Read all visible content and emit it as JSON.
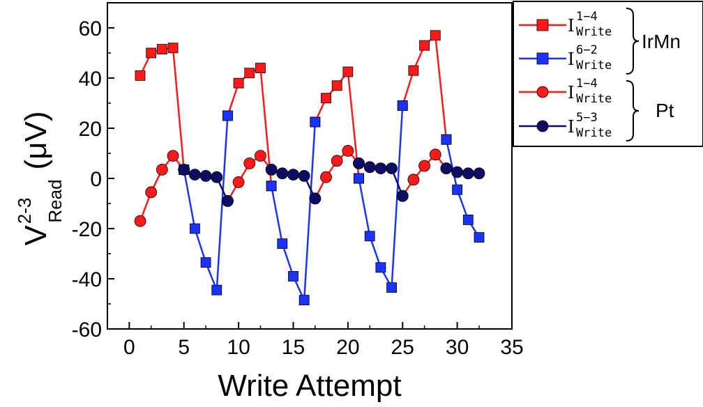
{
  "chart_data": {
    "type": "line",
    "xlabel": "Write Attempt",
    "ylabel": {
      "main": "V",
      "sup": "2-3",
      "sub": "Read",
      "unit": "(μV)"
    },
    "xlim": [
      -2,
      35
    ],
    "ylim": [
      -60,
      70
    ],
    "xticks": [
      0,
      5,
      10,
      15,
      20,
      25,
      30,
      35
    ],
    "yticks": [
      -60,
      -40,
      -20,
      0,
      20,
      40,
      60
    ],
    "series": [
      {
        "name": "I Write 1−4 (IrMn)",
        "color": "#ff1a1a",
        "marker": "square",
        "segments": [
          [
            [
              1,
              41
            ],
            [
              2,
              50
            ],
            [
              3,
              51.5
            ],
            [
              4,
              52
            ],
            [
              5,
              3.5
            ]
          ],
          [
            [
              9,
              25
            ],
            [
              10,
              38
            ],
            [
              11,
              42
            ],
            [
              12,
              44
            ],
            [
              13,
              -3
            ]
          ],
          [
            [
              17,
              22.5
            ],
            [
              18,
              32
            ],
            [
              19,
              37
            ],
            [
              20,
              42.5
            ],
            [
              21,
              0
            ]
          ],
          [
            [
              25,
              29
            ],
            [
              26,
              43
            ],
            [
              27,
              53
            ],
            [
              28,
              57
            ],
            [
              29,
              15.5
            ]
          ]
        ]
      },
      {
        "name": "I Write 6−2 (IrMn)",
        "color": "#1a33ff",
        "marker": "square",
        "segments": [
          [
            [
              5,
              3.5
            ],
            [
              6,
              -20
            ],
            [
              7,
              -33.5
            ],
            [
              8,
              -44.5
            ],
            [
              9,
              25
            ]
          ],
          [
            [
              13,
              -3
            ],
            [
              14,
              -26
            ],
            [
              15,
              -39
            ],
            [
              16,
              -48.5
            ],
            [
              17,
              22.5
            ]
          ],
          [
            [
              21,
              0
            ],
            [
              22,
              -23
            ],
            [
              23,
              -35.5
            ],
            [
              24,
              -43.5
            ],
            [
              25,
              29
            ]
          ],
          [
            [
              29,
              15.5
            ],
            [
              30,
              -4.5
            ],
            [
              31,
              -16.5
            ],
            [
              32,
              -23.5
            ]
          ]
        ]
      },
      {
        "name": "I Write 1−4 (Pt)",
        "color": "#ff1a1a",
        "marker": "circle",
        "segments": [
          [
            [
              1,
              -17
            ],
            [
              2,
              -5.5
            ],
            [
              3,
              3.5
            ],
            [
              4,
              9
            ],
            [
              5,
              3.5
            ]
          ],
          [
            [
              9,
              -9
            ],
            [
              10,
              -1.5
            ],
            [
              11,
              6
            ],
            [
              12,
              9
            ],
            [
              13,
              3.5
            ]
          ],
          [
            [
              17,
              -8
            ],
            [
              18,
              0.5
            ],
            [
              19,
              7
            ],
            [
              20,
              11
            ],
            [
              21,
              6
            ]
          ],
          [
            [
              25,
              -7
            ],
            [
              26,
              -0.5
            ],
            [
              27,
              5
            ],
            [
              28,
              9.5
            ],
            [
              29,
              4
            ]
          ]
        ]
      },
      {
        "name": "I Write 5−3 (Pt)",
        "color": "#0d0d66",
        "marker": "circle",
        "segments": [
          [
            [
              5,
              3.5
            ],
            [
              6,
              1.5
            ],
            [
              7,
              1
            ],
            [
              8,
              0.5
            ],
            [
              9,
              -9
            ]
          ],
          [
            [
              13,
              3.5
            ],
            [
              14,
              2
            ],
            [
              15,
              1.5
            ],
            [
              16,
              1
            ],
            [
              17,
              -8
            ]
          ],
          [
            [
              21,
              6
            ],
            [
              22,
              4.5
            ],
            [
              23,
              4
            ],
            [
              24,
              4
            ],
            [
              25,
              -7
            ]
          ],
          [
            [
              29,
              4
            ],
            [
              30,
              2.5
            ],
            [
              31,
              2
            ],
            [
              32,
              2
            ]
          ]
        ]
      }
    ],
    "legend": {
      "placement": "top-right",
      "entries": [
        {
          "symbol": "I",
          "sup": "1−4",
          "sub": "Write",
          "color": "#ff1a1a",
          "marker": "square"
        },
        {
          "symbol": "I",
          "sup": "6−2",
          "sub": "Write",
          "color": "#1a33ff",
          "marker": "square"
        },
        {
          "symbol": "I",
          "sup": "1−4",
          "sub": "Write",
          "color": "#ff1a1a",
          "marker": "circle"
        },
        {
          "symbol": "I",
          "sup": "5−3",
          "sub": "Write",
          "color": "#0d0d66",
          "marker": "circle"
        }
      ],
      "groups": [
        "IrMn",
        "Pt"
      ]
    }
  }
}
